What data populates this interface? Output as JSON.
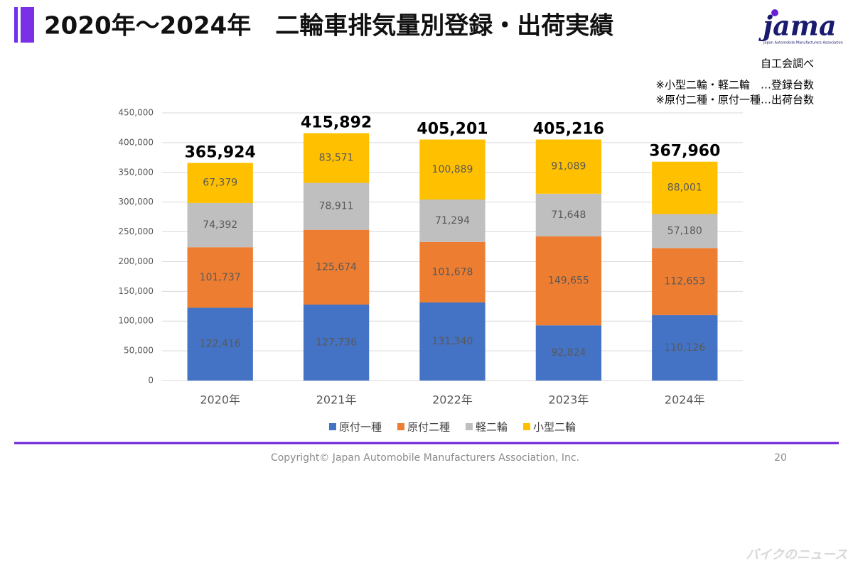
{
  "slide": {
    "title": "2020年～2024年　二輪車排気量別登録・出荷実績",
    "logo": "jama",
    "logo_subtitle": "Japan Automobile Manufacturers Association",
    "source": "自工会調べ",
    "notes": [
      "※小型二輪・軽二輪　…登録台数",
      "※原付二種・原付一種…出荷台数"
    ],
    "copyright": "Copyright© Japan Automobile Manufacturers Association, Inc.",
    "page_number": "20",
    "watermark": "バイクのニュース"
  },
  "chart_data": {
    "type": "stacked_bar",
    "categories": [
      "2020年",
      "2021年",
      "2022年",
      "2023年",
      "2024年"
    ],
    "series": [
      {
        "name": "原付一種",
        "color": "#4472c4",
        "values": [
          122416,
          127736,
          131340,
          92824,
          110126
        ],
        "value_labels": [
          "122,416",
          "127,736",
          "131,340",
          "92,824",
          "110,126"
        ]
      },
      {
        "name": "原付二種",
        "color": "#ed7d31",
        "values": [
          101737,
          125674,
          101678,
          149655,
          112653
        ],
        "value_labels": [
          "101,737",
          "125,674",
          "101,678",
          "149,655",
          "112,653"
        ]
      },
      {
        "name": "軽二輪",
        "color": "#bfbfbf",
        "values": [
          74392,
          78911,
          71294,
          71648,
          57180
        ],
        "value_labels": [
          "74,392",
          "78,911",
          "71,294",
          "71,648",
          "57,180"
        ]
      },
      {
        "name": "小型二輪",
        "color": "#ffc000",
        "values": [
          67379,
          83571,
          100889,
          91089,
          88001
        ],
        "value_labels": [
          "67,379",
          "83,571",
          "100,889",
          "91,089",
          "88,001"
        ]
      }
    ],
    "totals": {
      "values": [
        365924,
        415892,
        405201,
        405216,
        367960
      ],
      "value_labels": [
        "365,924",
        "415,892",
        "405,201",
        "405,216",
        "367,960"
      ]
    },
    "ylim": [
      0,
      450000
    ],
    "yticks": [
      0,
      {
        "value": 50000,
        "label": "50,000"
      },
      {
        "value": 100000,
        "label": "100,000"
      },
      {
        "value": 150000,
        "label": "150,000"
      },
      {
        "value": 200000,
        "label": "200,000"
      },
      {
        "value": 250000,
        "label": "250,000"
      },
      {
        "value": 300000,
        "label": "300,000"
      },
      {
        "value": 350000,
        "label": "350,000"
      },
      {
        "value": 400000,
        "label": "400,000"
      },
      {
        "value": 450000,
        "label": "450,000"
      }
    ],
    "grid": true,
    "legend": "bottom"
  }
}
